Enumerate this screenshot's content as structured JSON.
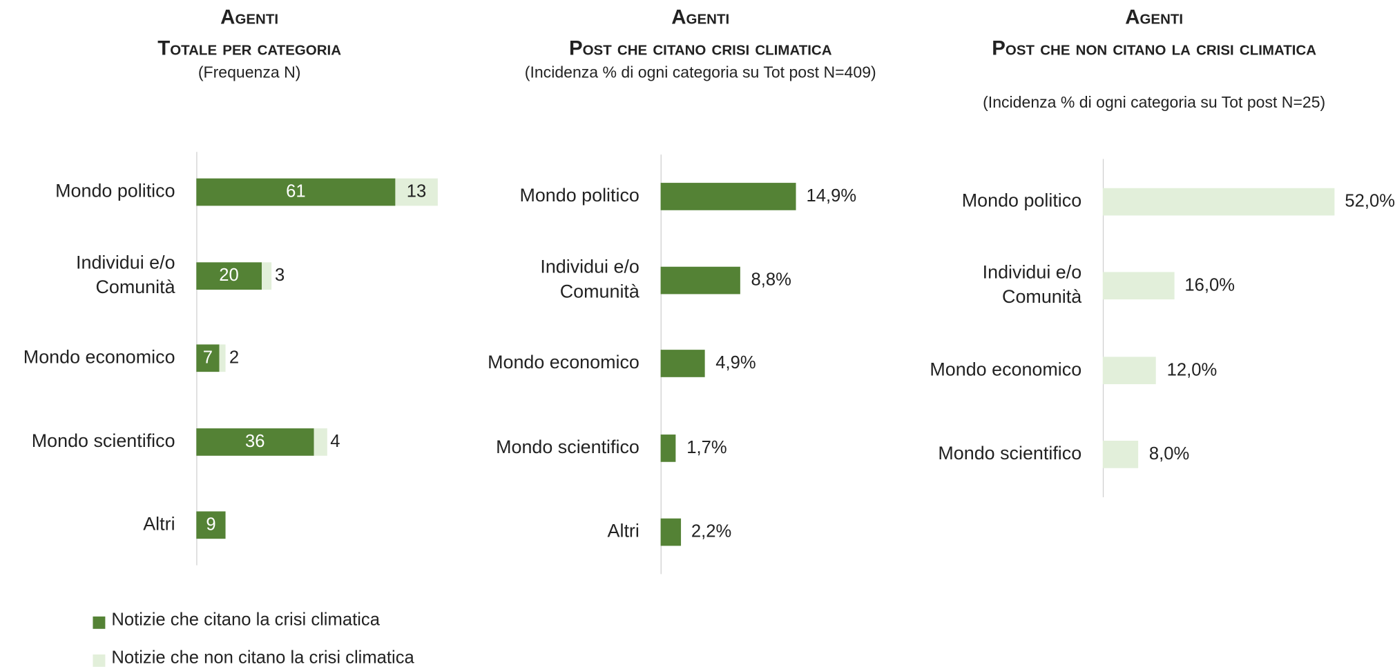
{
  "chart_data": [
    {
      "type": "stacked-bar-horizontal",
      "title": "Agenti",
      "subtitle": "Totale per categoria",
      "note": "(Frequenza N)",
      "categories": [
        "Mondo politico",
        "Individui e/o Comunità",
        "Mondo economico",
        "Mondo scientifico",
        "Altri"
      ],
      "series": [
        {
          "name": "Notizie che citano la crisi climatica",
          "color": "#548235",
          "values": [
            61,
            20,
            7,
            36,
            9
          ]
        },
        {
          "name": "Notizie  che non citano la crisi climatica",
          "color": "#e2efda",
          "values": [
            13,
            3,
            2,
            4,
            null
          ]
        }
      ],
      "xlim": [
        0,
        80
      ]
    },
    {
      "type": "bar-horizontal",
      "title": "Agenti",
      "subtitle": "Post che citano crisi climatica",
      "note": "(Incidenza % di ogni categoria su Tot post N=409)",
      "categories": [
        "Mondo politico",
        "Individui e/o Comunità",
        "Mondo economico",
        "Mondo scientifico",
        "Altri"
      ],
      "values": [
        14.9,
        8.8,
        4.9,
        1.7,
        2.2
      ],
      "value_labels": [
        "14,9%",
        "8,8%",
        "4,9%",
        "1,7%",
        "2,2%"
      ],
      "color": "#548235",
      "xlim": [
        0,
        20
      ]
    },
    {
      "type": "bar-horizontal",
      "title": "Agenti",
      "subtitle": "Post che non citano la crisi climatica",
      "note": "(Incidenza % di ogni categoria su Tot post N=25)",
      "categories": [
        "Mondo politico",
        "Individui e/o Comunità",
        "Mondo economico",
        "Mondo scientifico"
      ],
      "values": [
        52.0,
        16.0,
        12.0,
        8.0
      ],
      "value_labels": [
        "52,0%",
        "16,0%",
        "12,0%",
        "8,0%"
      ],
      "color": "#e2efda",
      "xlim": [
        0,
        60
      ]
    }
  ]
}
